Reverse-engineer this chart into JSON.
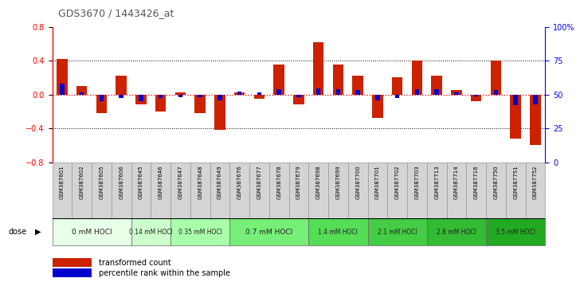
{
  "title": "GDS3670 / 1443426_at",
  "samples": [
    "GSM387601",
    "GSM387602",
    "GSM387605",
    "GSM387606",
    "GSM387645",
    "GSM387646",
    "GSM387647",
    "GSM387648",
    "GSM387649",
    "GSM387676",
    "GSM387677",
    "GSM387678",
    "GSM387679",
    "GSM387698",
    "GSM387699",
    "GSM387700",
    "GSM387701",
    "GSM387702",
    "GSM387703",
    "GSM387713",
    "GSM387714",
    "GSM387716",
    "GSM387750",
    "GSM387751",
    "GSM387752"
  ],
  "transformed_count": [
    0.42,
    0.1,
    -0.22,
    0.22,
    -0.12,
    -0.2,
    0.02,
    -0.22,
    -0.42,
    0.02,
    -0.05,
    0.35,
    -0.12,
    0.62,
    0.35,
    0.22,
    -0.28,
    0.2,
    0.4,
    0.22,
    0.05,
    -0.08,
    0.4,
    -0.52,
    -0.6
  ],
  "percentile_rank": [
    0.13,
    0.02,
    -0.08,
    -0.04,
    -0.08,
    -0.04,
    -0.03,
    -0.03,
    -0.07,
    0.03,
    0.02,
    0.06,
    -0.03,
    0.07,
    0.06,
    0.05,
    -0.07,
    -0.04,
    0.06,
    0.06,
    0.02,
    -0.02,
    0.05,
    -0.13,
    -0.12
  ],
  "dose_groups": [
    {
      "label": "0 mM HOCl",
      "start": 0,
      "end": 4,
      "color": "#e8ffe8"
    },
    {
      "label": "0.14 mM HOCl",
      "start": 4,
      "end": 6,
      "color": "#ccffcc"
    },
    {
      "label": "0.35 mM HOCl",
      "start": 6,
      "end": 9,
      "color": "#aaffaa"
    },
    {
      "label": "0.7 mM HOCl",
      "start": 9,
      "end": 13,
      "color": "#77ee77"
    },
    {
      "label": "1.4 mM HOCl",
      "start": 13,
      "end": 16,
      "color": "#55dd55"
    },
    {
      "label": "2.1 mM HOCl",
      "start": 16,
      "end": 19,
      "color": "#44cc44"
    },
    {
      "label": "2.8 mM HOCl",
      "start": 19,
      "end": 22,
      "color": "#33bb33"
    },
    {
      "label": "3.5 mM HOCl",
      "start": 22,
      "end": 25,
      "color": "#22aa22"
    }
  ],
  "ylim": [
    -0.8,
    0.8
  ],
  "yticks": [
    -0.8,
    -0.4,
    0.0,
    0.4,
    0.8
  ],
  "right_yticks_pct": [
    0,
    25,
    50,
    75,
    100
  ],
  "right_yticklabels": [
    "0",
    "25",
    "50",
    "75",
    "100%"
  ],
  "bar_color": "#cc2200",
  "percentile_color": "#0000cc",
  "background_color": "#ffffff",
  "plot_bg_color": "#ffffff",
  "zero_line_color": "#cc0000",
  "title_color": "#555555",
  "sample_box_color": "#d4d4d4",
  "sample_box_edge": "#999999"
}
